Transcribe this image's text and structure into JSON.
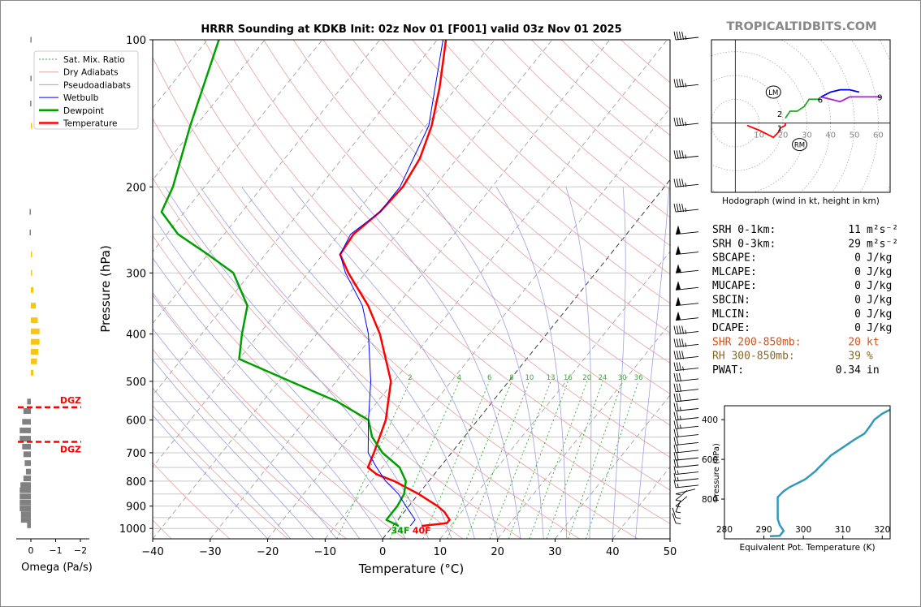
{
  "brand": "TROPICALTIDBITS.COM",
  "colors": {
    "temperature": "#ff0000",
    "dewpoint": "#00a000",
    "wetbulb": "#0000ff",
    "dry_adiabat": "#e8a0a0",
    "pseudo_adiabat": "#a0a0e0",
    "mixratio": "#33aa33",
    "dgz": "#ff0000",
    "omega_up": "#f5c518",
    "omega_down": "#808080",
    "theta_e": "#3399bb",
    "srh": "#000000",
    "shr": "#cc5522",
    "rh": "#886622",
    "brand": "#888888"
  },
  "omega_panel": {
    "xlabel": "Omega (Pa/s)",
    "xticks": [
      "0",
      "−1",
      "−2"
    ],
    "dgz_label": "DGZ",
    "dgz_top_hpa": 565,
    "dgz_bottom_hpa": 665,
    "values": [
      {
        "p": 100,
        "w": 0.02
      },
      {
        "p": 120,
        "w": 0.02
      },
      {
        "p": 135,
        "w": 0.03
      },
      {
        "p": 150,
        "w": -0.05
      },
      {
        "p": 225,
        "w": 0.05
      },
      {
        "p": 248,
        "w": 0.05
      },
      {
        "p": 275,
        "w": -0.02
      },
      {
        "p": 300,
        "w": -0.05
      },
      {
        "p": 325,
        "w": -0.1
      },
      {
        "p": 350,
        "w": -0.2
      },
      {
        "p": 375,
        "w": -0.28
      },
      {
        "p": 395,
        "w": -0.35
      },
      {
        "p": 415,
        "w": -0.35
      },
      {
        "p": 435,
        "w": -0.3
      },
      {
        "p": 455,
        "w": -0.25
      },
      {
        "p": 480,
        "w": -0.1
      },
      {
        "p": 550,
        "w": 0.15
      },
      {
        "p": 575,
        "w": 0.3
      },
      {
        "p": 605,
        "w": 0.35
      },
      {
        "p": 630,
        "w": 0.45
      },
      {
        "p": 655,
        "w": 0.45
      },
      {
        "p": 680,
        "w": 0.35
      },
      {
        "p": 705,
        "w": 0.3
      },
      {
        "p": 735,
        "w": 0.25
      },
      {
        "p": 765,
        "w": 0.2
      },
      {
        "p": 790,
        "w": 0.3
      },
      {
        "p": 815,
        "w": 0.42
      },
      {
        "p": 835,
        "w": 0.45
      },
      {
        "p": 860,
        "w": 0.45
      },
      {
        "p": 885,
        "w": 0.45
      },
      {
        "p": 910,
        "w": 0.45
      },
      {
        "p": 935,
        "w": 0.4
      },
      {
        "p": 960,
        "w": 0.4
      },
      {
        "p": 985,
        "w": 0.15
      }
    ]
  },
  "chart_data": [
    {
      "type": "line",
      "title": "HRRR Sounding at KDKB Init: 02z Nov 01 [F001] valid 03z Nov 01 2025",
      "xlabel": "Temperature (°C)",
      "ylabel": "Pressure (hPa)",
      "xlim": [
        -40,
        50
      ],
      "ylim": [
        1050,
        100
      ],
      "xticks": [
        "−40",
        "−30",
        "−20",
        "−10",
        "0",
        "10",
        "20",
        "30",
        "40",
        "50"
      ],
      "yticks": [
        "100",
        "200",
        "300",
        "400",
        "500",
        "600",
        "700",
        "800",
        "900",
        "1000"
      ],
      "y_scale": "log",
      "skew": "skew-T",
      "grid": true,
      "legend": {
        "placement": "top-left",
        "entries": [
          "Sat. Mix. Ratio",
          "Dry Adiabats",
          "Pseudoadiabats",
          "Wetbulb",
          "Dewpoint",
          "Temperature"
        ]
      },
      "mixing_ratio_labels": [
        "2",
        "4",
        "6",
        "8",
        "10",
        "13",
        "16",
        "20",
        "24",
        "30",
        "36"
      ],
      "surface_labels": {
        "dewpoint": "34F",
        "temperature": "40F"
      },
      "series": [
        {
          "name": "Temperature",
          "points": [
            [
              988,
              5.0
            ],
            [
              975,
              9.0
            ],
            [
              960,
              9.0
            ],
            [
              925,
              7.0
            ],
            [
              900,
              5.0
            ],
            [
              850,
              0.0
            ],
            [
              800,
              -6.0
            ],
            [
              775,
              -10.0
            ],
            [
              750,
              -12.5
            ],
            [
              700,
              -13.5
            ],
            [
              600,
              -16.0
            ],
            [
              500,
              -20.5
            ],
            [
              400,
              -29.0
            ],
            [
              350,
              -35.0
            ],
            [
              300,
              -43.0
            ],
            [
              275,
              -47.0
            ],
            [
              250,
              -47.5
            ],
            [
              225,
              -46.0
            ],
            [
              200,
              -45.5
            ],
            [
              175,
              -46.5
            ],
            [
              150,
              -49.0
            ],
            [
              125,
              -53.0
            ],
            [
              100,
              -58.5
            ]
          ]
        },
        {
          "name": "Dewpoint",
          "points": [
            [
              988,
              1.0
            ],
            [
              960,
              -2.0
            ],
            [
              925,
              -2.0
            ],
            [
              900,
              -2.0
            ],
            [
              850,
              -2.5
            ],
            [
              800,
              -4.0
            ],
            [
              750,
              -7.0
            ],
            [
              700,
              -12.0
            ],
            [
              650,
              -16.0
            ],
            [
              600,
              -19.0
            ],
            [
              550,
              -27.0
            ],
            [
              500,
              -38.0
            ],
            [
              450,
              -50.0
            ],
            [
              400,
              -53.0
            ],
            [
              350,
              -56.0
            ],
            [
              300,
              -63.0
            ],
            [
              275,
              -70.0
            ],
            [
              250,
              -78.0
            ],
            [
              225,
              -84.0
            ],
            [
              200,
              -85.5
            ],
            [
              150,
              -91.0
            ],
            [
              100,
              -98.0
            ]
          ]
        },
        {
          "name": "Wetbulb",
          "points": [
            [
              988,
              3.0
            ],
            [
              960,
              3.0
            ],
            [
              925,
              1.0
            ],
            [
              900,
              -0.5
            ],
            [
              850,
              -3.5
            ],
            [
              800,
              -7.5
            ],
            [
              750,
              -11.0
            ],
            [
              700,
              -14.5
            ],
            [
              600,
              -19.0
            ],
            [
              500,
              -24.0
            ],
            [
              400,
              -31.0
            ],
            [
              350,
              -36.0
            ],
            [
              300,
              -43.5
            ],
            [
              275,
              -47.0
            ],
            [
              250,
              -48.0
            ],
            [
              225,
              -46.0
            ],
            [
              200,
              -46.0
            ],
            [
              150,
              -49.5
            ],
            [
              100,
              -59.0
            ]
          ]
        }
      ],
      "wind_barbs": [
        {
          "p": 100,
          "spd": "45",
          "dir": "W"
        },
        {
          "p": 125,
          "spd": "45",
          "dir": "W"
        },
        {
          "p": 150,
          "spd": "45",
          "dir": "W"
        },
        {
          "p": 175,
          "spd": "45",
          "dir": "W"
        },
        {
          "p": 200,
          "spd": "45",
          "dir": "W"
        },
        {
          "p": 225,
          "spd": "45",
          "dir": "W"
        },
        {
          "p": 250,
          "spd": "50",
          "dir": "W"
        },
        {
          "p": 275,
          "spd": "50",
          "dir": "W"
        },
        {
          "p": 300,
          "spd": "55",
          "dir": "W"
        },
        {
          "p": 325,
          "spd": "50",
          "dir": "W"
        },
        {
          "p": 350,
          "spd": "50",
          "dir": "W"
        },
        {
          "p": 375,
          "spd": "50",
          "dir": "W"
        },
        {
          "p": 400,
          "spd": "45",
          "dir": "W"
        },
        {
          "p": 425,
          "spd": "45",
          "dir": "W"
        },
        {
          "p": 450,
          "spd": "40",
          "dir": "W"
        },
        {
          "p": 475,
          "spd": "35",
          "dir": "W"
        },
        {
          "p": 500,
          "spd": "30",
          "dir": "W"
        },
        {
          "p": 525,
          "spd": "30",
          "dir": "W"
        },
        {
          "p": 550,
          "spd": "30",
          "dir": "W"
        },
        {
          "p": 575,
          "spd": "25",
          "dir": "W"
        },
        {
          "p": 600,
          "spd": "25",
          "dir": "W"
        },
        {
          "p": 625,
          "spd": "25",
          "dir": "W"
        },
        {
          "p": 650,
          "spd": "20",
          "dir": "W"
        },
        {
          "p": 675,
          "spd": "20",
          "dir": "W"
        },
        {
          "p": 700,
          "spd": "20",
          "dir": "W"
        },
        {
          "p": 725,
          "spd": "20",
          "dir": "W"
        },
        {
          "p": 750,
          "spd": "20",
          "dir": "W"
        },
        {
          "p": 775,
          "spd": "15",
          "dir": "W"
        },
        {
          "p": 800,
          "spd": "15",
          "dir": "W"
        },
        {
          "p": 825,
          "spd": "15",
          "dir": "W"
        },
        {
          "p": 850,
          "spd": "10",
          "dir": "WNW"
        },
        {
          "p": 875,
          "spd": "10",
          "dir": "NW"
        },
        {
          "p": 900,
          "spd": "10",
          "dir": "NW"
        },
        {
          "p": 925,
          "spd": "5",
          "dir": "NNW"
        },
        {
          "p": 950,
          "spd": "5",
          "dir": "NNE"
        },
        {
          "p": 975,
          "spd": "5",
          "dir": "NE"
        }
      ]
    },
    {
      "type": "line",
      "title": "Hodograph (wind in kt, height in km)",
      "xlabel": "",
      "ylabel": "",
      "xlim": [
        -10,
        65
      ],
      "ylim": [
        -30,
        35
      ],
      "xticks": [
        "10",
        "20",
        "30",
        "40",
        "50",
        "60"
      ],
      "ring_spacing": 10,
      "grid": true,
      "markers": [
        {
          "label": "LM",
          "u": 16,
          "v": 13
        },
        {
          "label": "RM",
          "u": 27,
          "v": -9
        }
      ],
      "height_labels": [
        {
          "label": "1",
          "u": 19,
          "v": -2
        },
        {
          "label": "2",
          "u": 19,
          "v": 4
        },
        {
          "label": "6",
          "u": 36,
          "v": 10
        },
        {
          "label": "9",
          "u": 61,
          "v": 11
        }
      ],
      "series": [
        {
          "name": "0-1 km",
          "points": [
            [
              5,
              -1
            ],
            [
              10,
              -3
            ],
            [
              14,
              -5
            ],
            [
              16,
              -6
            ],
            [
              17,
              -5
            ],
            [
              18,
              -4
            ],
            [
              19,
              -2
            ],
            [
              21,
              -1
            ],
            [
              21,
              0
            ]
          ]
        },
        {
          "name": "1-3 km",
          "points": [
            [
              21,
              2
            ],
            [
              23,
              5
            ],
            [
              26,
              5
            ],
            [
              29,
              7
            ],
            [
              31,
              10
            ],
            [
              33,
              10
            ],
            [
              35,
              10
            ],
            [
              36,
              10
            ]
          ]
        },
        {
          "name": "3-6 km",
          "points": [
            [
              36,
              11
            ],
            [
              40,
              13
            ],
            [
              44,
              14
            ],
            [
              48,
              14
            ],
            [
              52,
              13
            ]
          ]
        },
        {
          "name": "6-9 km",
          "points": [
            [
              36,
              11
            ],
            [
              40,
              10
            ],
            [
              44,
              9
            ],
            [
              48,
              11
            ],
            [
              52,
              11
            ],
            [
              56,
              11
            ],
            [
              61,
              11
            ]
          ]
        }
      ]
    },
    {
      "type": "line",
      "title": "",
      "xlabel": "Equivalent Pot. Temperature (K)",
      "ylabel": "Pressure (hPa)",
      "xlim": [
        280,
        322
      ],
      "ylim": [
        1000,
        330
      ],
      "xticks": [
        "280",
        "290",
        "300",
        "310",
        "320"
      ],
      "yticks": [
        "400",
        "600",
        "800"
      ],
      "grid": false,
      "series": [
        {
          "name": "theta-e",
          "points": [
            [
              987,
              291.5
            ],
            [
              985,
              294.0
            ],
            [
              960,
              295.0
            ],
            [
              930,
              294.0
            ],
            [
              900,
              293.5
            ],
            [
              860,
              293.5
            ],
            [
              820,
              293.5
            ],
            [
              790,
              293.5
            ],
            [
              760,
              295.0
            ],
            [
              740,
              296.5
            ],
            [
              720,
              298.5
            ],
            [
              700,
              300.5
            ],
            [
              660,
              303.0
            ],
            [
              620,
              305.0
            ],
            [
              580,
              307.0
            ],
            [
              540,
              310.0
            ],
            [
              500,
              313.0
            ],
            [
              470,
              315.5
            ],
            [
              430,
              317.0
            ],
            [
              400,
              318.0
            ],
            [
              370,
              320.0
            ],
            [
              350,
              322.0
            ]
          ]
        }
      ]
    }
  ],
  "indices": [
    {
      "label": "SRH 0-1km:",
      "value": "11",
      "unit": "m²s⁻²",
      "color": "srh"
    },
    {
      "label": "SRH 0-3km:",
      "value": "29",
      "unit": "m²s⁻²",
      "color": "srh"
    },
    {
      "label": "SBCAPE:",
      "value": "0",
      "unit": "J/kg",
      "color": "srh"
    },
    {
      "label": "MLCAPE:",
      "value": "0",
      "unit": "J/kg",
      "color": "srh"
    },
    {
      "label": "MUCAPE:",
      "value": "0",
      "unit": "J/kg",
      "color": "srh"
    },
    {
      "label": "SBCIN:",
      "value": "0",
      "unit": "J/kg",
      "color": "srh"
    },
    {
      "label": "MLCIN:",
      "value": "0",
      "unit": "J/kg",
      "color": "srh"
    },
    {
      "label": "DCAPE:",
      "value": "0",
      "unit": "J/kg",
      "color": "srh"
    },
    {
      "label": "SHR 200-850mb:",
      "value": "20",
      "unit": "kt",
      "color": "shr"
    },
    {
      "label": "RH 300-850mb:",
      "value": "39",
      "unit": "%",
      "color": "rh"
    },
    {
      "label": "PWAT:",
      "value": "0.34",
      "unit": "in",
      "color": "srh"
    }
  ]
}
